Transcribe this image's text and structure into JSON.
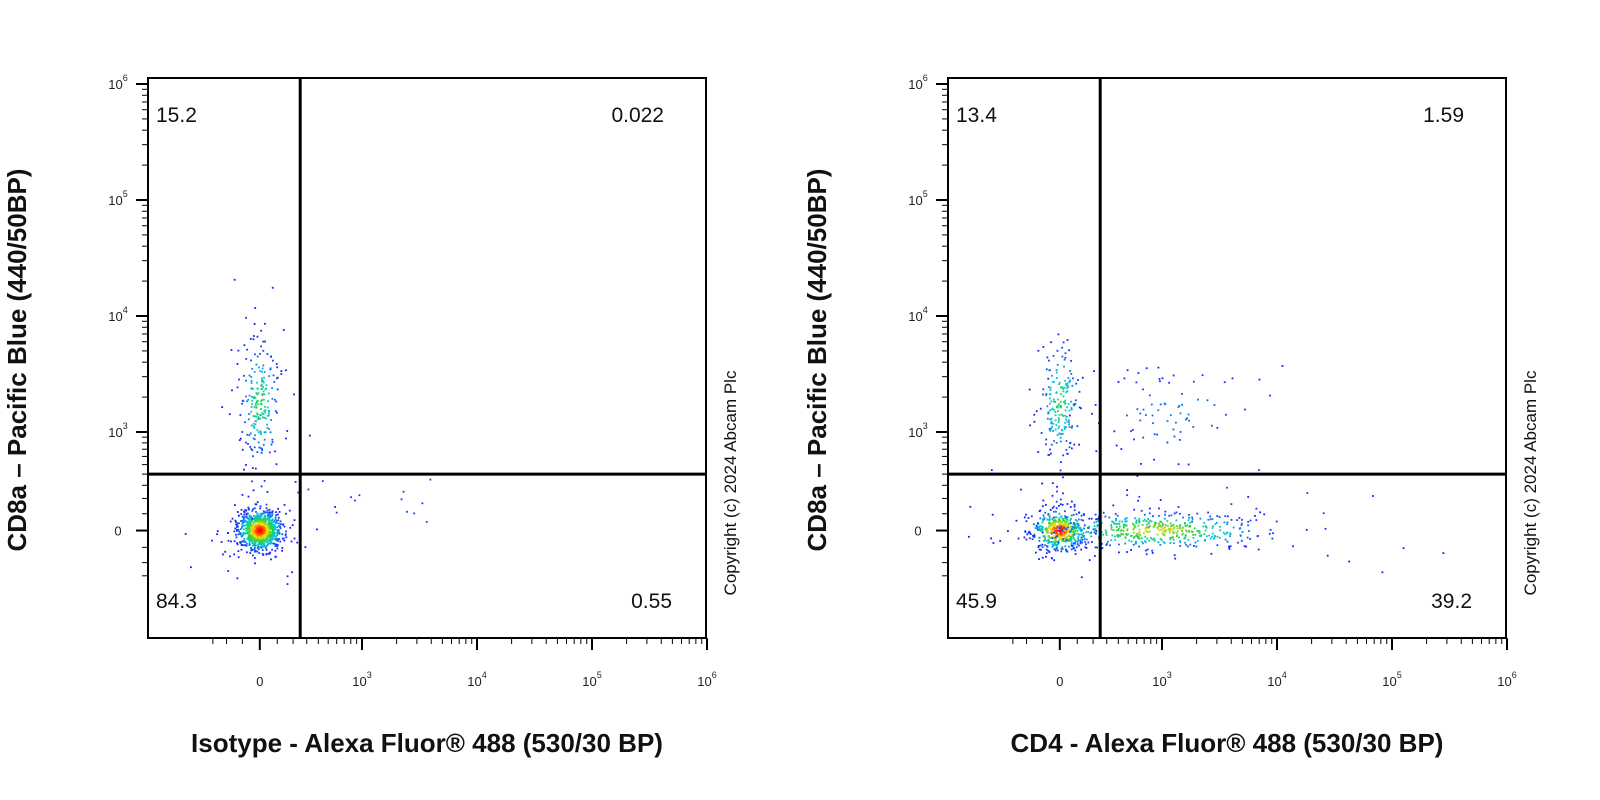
{
  "chart_data": [
    {
      "type": "scatter",
      "subtype": "flow-cytometry-density-dot-plot",
      "xlabel": "Isotype - Alexa Fluor® 488 (530/30 BP)",
      "ylabel": "CD8a – Pacific Blue (440/50BP)",
      "x_scale": "biexponential",
      "y_scale": "biexponential",
      "xlim": [
        -350,
        1000000
      ],
      "ylim": [
        -320,
        1000000
      ],
      "x_tick_labels": [
        "0",
        "10^3",
        "10^4",
        "10^5",
        "10^6"
      ],
      "y_tick_labels": [
        "0",
        "10^3",
        "10^4",
        "10^5",
        "10^6"
      ],
      "grid": false,
      "quadrant_gate": {
        "x": 250,
        "y": 400
      },
      "quadrants": [
        {
          "position": "top-left",
          "value": "15.2"
        },
        {
          "position": "top-right",
          "value": "0.022"
        },
        {
          "position": "bottom-left",
          "value": "84.3"
        },
        {
          "position": "bottom-right",
          "value": "0.55"
        }
      ],
      "populations": [
        {
          "name_hint": "double-negative",
          "x_center": 0,
          "y_center": 0,
          "relative_size": 84.3
        },
        {
          "name_hint": "CD8a-positive",
          "x_center": 0,
          "y_center": 1800,
          "relative_size": 15.2
        }
      ],
      "copyright": "Copyright (c) 2024 Abcam Plc"
    },
    {
      "type": "scatter",
      "subtype": "flow-cytometry-density-dot-plot",
      "xlabel": "CD4 - Alexa Fluor® 488 (530/30 BP)",
      "ylabel": "CD8a – Pacific Blue (440/50BP)",
      "x_scale": "biexponential",
      "y_scale": "biexponential",
      "xlim": [
        -350,
        1000000
      ],
      "ylim": [
        -320,
        1000000
      ],
      "x_tick_labels": [
        "0",
        "10^3",
        "10^4",
        "10^5",
        "10^6"
      ],
      "y_tick_labels": [
        "0",
        "10^3",
        "10^4",
        "10^5",
        "10^6"
      ],
      "grid": false,
      "quadrant_gate": {
        "x": 250,
        "y": 400
      },
      "quadrants": [
        {
          "position": "top-left",
          "value": "13.4"
        },
        {
          "position": "top-right",
          "value": "1.59"
        },
        {
          "position": "bottom-left",
          "value": "45.9"
        },
        {
          "position": "bottom-right",
          "value": "39.2"
        }
      ],
      "populations": [
        {
          "name_hint": "double-negative",
          "x_center": 0,
          "y_center": 0,
          "relative_size": 45.9
        },
        {
          "name_hint": "CD4-positive",
          "x_center": 900,
          "y_center": 0,
          "relative_size": 39.2
        },
        {
          "name_hint": "CD8a-positive",
          "x_center": 0,
          "y_center": 1800,
          "relative_size": 13.4
        },
        {
          "name_hint": "double-positive",
          "x_center": 1300,
          "y_center": 1500,
          "relative_size": 1.59
        }
      ],
      "copyright": "Copyright (c) 2024 Abcam Plc"
    }
  ],
  "colors": {
    "density_low": "#1a1aff",
    "density_mid": "#00d2d2",
    "density_high": "#ffdd00",
    "density_peak": "#ff0000",
    "axes": "#000000",
    "gate_lines": "#000000"
  }
}
